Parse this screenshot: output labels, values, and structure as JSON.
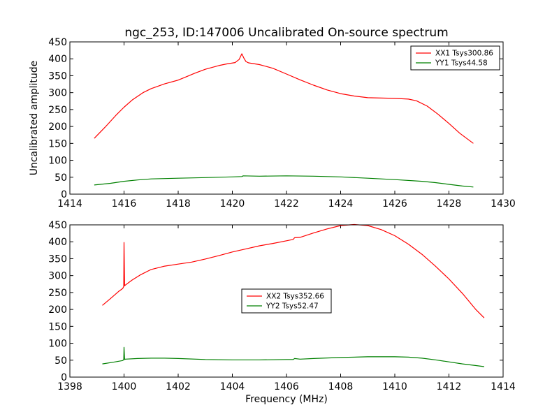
{
  "chart_data": [
    {
      "type": "line",
      "title": "ngc_253, ID:147006 Uncalibrated On-source spectrum",
      "xlabel": "",
      "ylabel": "Uncalibrated amplitude",
      "xlim": [
        1414,
        1430
      ],
      "ylim": [
        0,
        450
      ],
      "xticks": [
        1414,
        1416,
        1418,
        1420,
        1422,
        1424,
        1426,
        1428,
        1430
      ],
      "yticks": [
        0,
        50,
        100,
        150,
        200,
        250,
        300,
        350,
        400,
        450
      ],
      "legend_position": "top-right",
      "series": [
        {
          "name": "XX1 Tsys300.86",
          "color": "#ff0000",
          "x": [
            1414.9,
            1415.3,
            1415.7,
            1416.0,
            1416.3,
            1416.7,
            1417.0,
            1417.5,
            1418.0,
            1418.3,
            1418.6,
            1419.0,
            1419.5,
            1419.8,
            1420.1,
            1420.25,
            1420.35,
            1420.42,
            1420.5,
            1420.6,
            1421.0,
            1421.5,
            1422.0,
            1422.5,
            1423.0,
            1423.5,
            1424.0,
            1424.5,
            1425.0,
            1425.5,
            1426.0,
            1426.5,
            1426.8,
            1427.2,
            1427.6,
            1428.0,
            1428.4,
            1428.9
          ],
          "values": [
            165,
            198,
            233,
            257,
            278,
            300,
            312,
            326,
            337,
            347,
            357,
            369,
            380,
            385,
            389,
            398,
            415,
            403,
            392,
            388,
            383,
            372,
            355,
            338,
            322,
            308,
            297,
            290,
            285,
            284,
            283,
            281,
            276,
            260,
            236,
            209,
            180,
            150
          ]
        },
        {
          "name": "YY1 Tsys44.58",
          "color": "#008000",
          "x": [
            1414.9,
            1415.5,
            1416.0,
            1416.5,
            1417.0,
            1418.0,
            1419.0,
            1420.0,
            1420.35,
            1420.4,
            1421.0,
            1422.0,
            1423.0,
            1424.0,
            1425.0,
            1426.0,
            1427.0,
            1427.5,
            1428.0,
            1428.5,
            1428.9
          ],
          "values": [
            27,
            32,
            38,
            42,
            45,
            47,
            49,
            51,
            52,
            54,
            53,
            54,
            53,
            51,
            47,
            43,
            38,
            34,
            29,
            24,
            21
          ]
        }
      ]
    },
    {
      "type": "line",
      "title": "",
      "xlabel": "Frequency (MHz)",
      "ylabel": "",
      "xlim": [
        1398,
        1414
      ],
      "ylim": [
        0,
        450
      ],
      "xticks": [
        1398,
        1400,
        1402,
        1404,
        1406,
        1408,
        1410,
        1412,
        1414
      ],
      "yticks": [
        0,
        50,
        100,
        150,
        200,
        250,
        300,
        350,
        400,
        450
      ],
      "legend_position": "center",
      "series": [
        {
          "name": "XX2 Tsys352.66",
          "color": "#ff0000",
          "x": [
            1399.2,
            1399.5,
            1399.8,
            1399.95,
            1399.99,
            1400.0,
            1400.02,
            1400.05,
            1400.3,
            1400.6,
            1401.0,
            1401.5,
            1402.0,
            1402.5,
            1403.0,
            1403.5,
            1404.0,
            1404.5,
            1405.0,
            1405.5,
            1406.0,
            1406.25,
            1406.3,
            1406.5,
            1407.0,
            1407.5,
            1408.0,
            1408.5,
            1409.0,
            1409.5,
            1410.0,
            1410.5,
            1411.0,
            1411.5,
            1412.0,
            1412.5,
            1413.0,
            1413.3
          ],
          "values": [
            212,
            232,
            253,
            262,
            268,
            398,
            270,
            272,
            287,
            302,
            318,
            328,
            334,
            340,
            349,
            359,
            370,
            379,
            388,
            395,
            403,
            407,
            412,
            413,
            426,
            438,
            448,
            451,
            448,
            436,
            418,
            393,
            363,
            328,
            290,
            247,
            199,
            175
          ]
        },
        {
          "name": "YY2 Tsys52.47",
          "color": "#008000",
          "x": [
            1399.2,
            1399.6,
            1399.95,
            1399.99,
            1400.0,
            1400.02,
            1400.05,
            1400.5,
            1401.0,
            1401.5,
            1402.0,
            1403.0,
            1404.0,
            1405.0,
            1406.0,
            1406.25,
            1406.3,
            1406.5,
            1407.0,
            1408.0,
            1409.0,
            1410.0,
            1410.5,
            1411.0,
            1411.5,
            1412.0,
            1412.5,
            1413.0,
            1413.3
          ],
          "values": [
            39,
            44,
            49,
            52,
            88,
            52,
            53,
            55,
            56,
            56,
            55,
            52,
            51,
            51,
            52,
            52,
            55,
            53,
            55,
            58,
            60,
            60,
            59,
            56,
            51,
            45,
            39,
            34,
            31
          ]
        }
      ]
    }
  ]
}
